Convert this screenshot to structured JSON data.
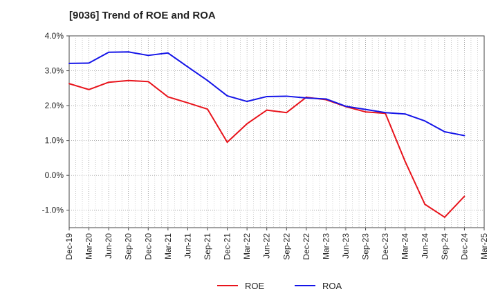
{
  "chart_data": {
    "type": "line",
    "title": "[9036]  Trend of ROE and ROA",
    "xlabel": "",
    "ylabel": "",
    "categories": [
      "Dec-19",
      "Mar-20",
      "Jun-20",
      "Sep-20",
      "Dec-20",
      "Mar-21",
      "Jun-21",
      "Sep-21",
      "Dec-21",
      "Mar-22",
      "Jun-22",
      "Sep-22",
      "Dec-22",
      "Mar-23",
      "Jun-23",
      "Sep-23",
      "Dec-23",
      "Mar-24",
      "Jun-24",
      "Sep-24",
      "Dec-24",
      "Mar-25"
    ],
    "series": [
      {
        "name": "ROE",
        "color": "#e8141c",
        "values": [
          2.63,
          2.46,
          2.67,
          2.72,
          2.69,
          2.25,
          2.08,
          1.9,
          0.95,
          1.48,
          1.87,
          1.8,
          2.24,
          2.17,
          1.97,
          1.82,
          1.78,
          0.4,
          -0.83,
          -1.2,
          -0.6,
          null
        ]
      },
      {
        "name": "ROA",
        "color": "#1414e8",
        "values": [
          3.21,
          3.22,
          3.53,
          3.54,
          3.44,
          3.51,
          3.11,
          2.72,
          2.28,
          2.12,
          2.26,
          2.27,
          2.22,
          2.19,
          1.98,
          1.89,
          1.8,
          1.76,
          1.56,
          1.25,
          1.14,
          null
        ]
      }
    ],
    "ylim": [
      -1.5,
      4.0
    ],
    "yticks": [
      -1.0,
      0.0,
      1.0,
      2.0,
      3.0,
      4.0
    ],
    "ytick_labels": [
      "-1.0%",
      "0.0%",
      "1.0%",
      "2.0%",
      "3.0%",
      "4.0%"
    ],
    "grid": true,
    "legend": "bottom-center"
  }
}
